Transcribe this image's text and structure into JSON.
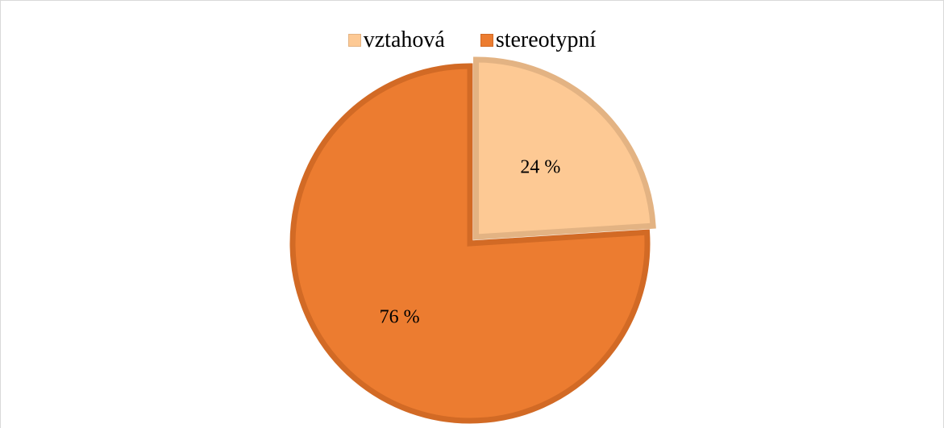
{
  "chart_data": {
    "type": "pie",
    "title": "",
    "labels": [
      "vztahová",
      "stereotypní"
    ],
    "values": [
      24,
      76
    ],
    "data_labels": [
      "24 %",
      "76 %"
    ],
    "colors": [
      "#fdc994",
      "#ec7c30"
    ],
    "edge_colors": [
      "#e3b383",
      "#d26a25"
    ],
    "exploded_slice": "vztahová",
    "legend_position": "top"
  }
}
